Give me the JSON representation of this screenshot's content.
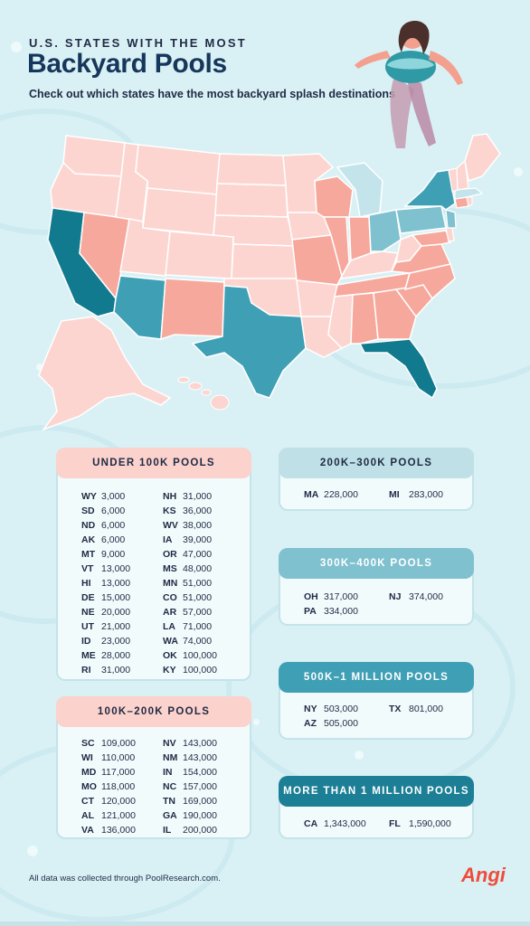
{
  "header": {
    "eyebrow": "U.S. STATES WITH THE MOST",
    "title": "Backyard Pools",
    "subtitle": "Check out which states have the most backyard splash destinations"
  },
  "colors": {
    "under_100k": "#fcd5d0",
    "100k_200k": "#f7a89c",
    "200k_300k": "#c4e4eb",
    "300k_400k": "#7fc1cf",
    "500k_1m": "#3f9fb5",
    "over_1m": "#117a8f",
    "brand": "#ef4b3a"
  },
  "tables": {
    "under_100k": {
      "title": "UNDER 100K POOLS",
      "col1": [
        {
          "state": "WY",
          "value": "3,000"
        },
        {
          "state": "SD",
          "value": "6,000"
        },
        {
          "state": "ND",
          "value": "6,000"
        },
        {
          "state": "AK",
          "value": "6,000"
        },
        {
          "state": "MT",
          "value": "9,000"
        },
        {
          "state": "VT",
          "value": "13,000"
        },
        {
          "state": "HI",
          "value": "13,000"
        },
        {
          "state": "DE",
          "value": "15,000"
        },
        {
          "state": "NE",
          "value": "20,000"
        },
        {
          "state": "UT",
          "value": "21,000"
        },
        {
          "state": "ID",
          "value": "23,000"
        },
        {
          "state": "ME",
          "value": "28,000"
        },
        {
          "state": "RI",
          "value": "31,000"
        }
      ],
      "col2": [
        {
          "state": "NH",
          "value": "31,000"
        },
        {
          "state": "KS",
          "value": "36,000"
        },
        {
          "state": "WV",
          "value": "38,000"
        },
        {
          "state": "IA",
          "value": "39,000"
        },
        {
          "state": "OR",
          "value": "47,000"
        },
        {
          "state": "MS",
          "value": "48,000"
        },
        {
          "state": "MN",
          "value": "51,000"
        },
        {
          "state": "CO",
          "value": "51,000"
        },
        {
          "state": "AR",
          "value": "57,000"
        },
        {
          "state": "LA",
          "value": "71,000"
        },
        {
          "state": "WA",
          "value": "74,000"
        },
        {
          "state": "OK",
          "value": "100,000"
        },
        {
          "state": "KY",
          "value": "100,000"
        }
      ]
    },
    "100k_200k": {
      "title": "100K–200K POOLS",
      "col1": [
        {
          "state": "SC",
          "value": "109,000"
        },
        {
          "state": "WI",
          "value": "110,000"
        },
        {
          "state": "MD",
          "value": "117,000"
        },
        {
          "state": "MO",
          "value": "118,000"
        },
        {
          "state": "CT",
          "value": "120,000"
        },
        {
          "state": "AL",
          "value": "121,000"
        },
        {
          "state": "VA",
          "value": "136,000"
        }
      ],
      "col2": [
        {
          "state": "NV",
          "value": "143,000"
        },
        {
          "state": "NM",
          "value": "143,000"
        },
        {
          "state": "IN",
          "value": "154,000"
        },
        {
          "state": "NC",
          "value": "157,000"
        },
        {
          "state": "TN",
          "value": "169,000"
        },
        {
          "state": "GA",
          "value": "190,000"
        },
        {
          "state": "IL",
          "value": "200,000"
        }
      ]
    },
    "200k_300k": {
      "title": "200K–300K POOLS",
      "col1": [
        {
          "state": "MA",
          "value": "228,000"
        }
      ],
      "col2": [
        {
          "state": "MI",
          "value": "283,000"
        }
      ]
    },
    "300k_400k": {
      "title": "300K–400K POOLS",
      "col1": [
        {
          "state": "OH",
          "value": "317,000"
        },
        {
          "state": "PA",
          "value": "334,000"
        }
      ],
      "col2": [
        {
          "state": "NJ",
          "value": "374,000"
        }
      ]
    },
    "500k_1m": {
      "title": "500K–1 MILLION POOLS",
      "col1": [
        {
          "state": "NY",
          "value": "503,000"
        },
        {
          "state": "AZ",
          "value": "505,000"
        }
      ],
      "col2": [
        {
          "state": "TX",
          "value": "801,000"
        }
      ]
    },
    "over_1m": {
      "title": "MORE THAN 1 MILLION POOLS",
      "col1": [
        {
          "state": "CA",
          "value": "1,343,000"
        }
      ],
      "col2": [
        {
          "state": "FL",
          "value": "1,590,000"
        }
      ]
    }
  },
  "footer": {
    "note": "All data was collected through PoolResearch.com.",
    "logo": "Angi"
  }
}
